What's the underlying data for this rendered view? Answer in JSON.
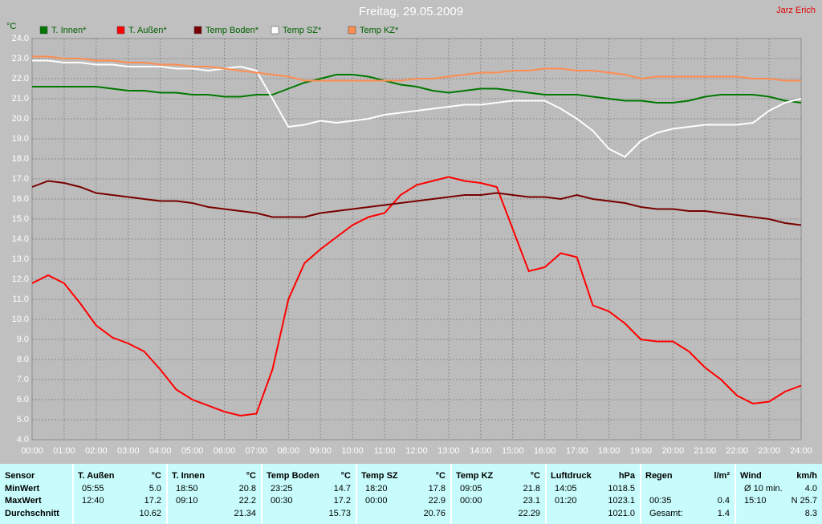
{
  "chart_data": {
    "type": "line",
    "title": "Freitag, 29.05.2009",
    "author": "Jarz Erich",
    "y_unit": "°C",
    "grid": true,
    "x": [
      0,
      0.5,
      1,
      1.5,
      2,
      2.5,
      3,
      3.5,
      4,
      4.5,
      5,
      5.5,
      6,
      6.5,
      7,
      7.5,
      8,
      8.5,
      9,
      9.5,
      10,
      10.5,
      11,
      11.5,
      12,
      12.5,
      13,
      13.5,
      14,
      14.5,
      15,
      15.5,
      16,
      16.5,
      17,
      17.5,
      18,
      18.5,
      19,
      19.5,
      20,
      20.5,
      21,
      21.5,
      22,
      22.5,
      23,
      23.5,
      24
    ],
    "xlim": [
      0,
      24
    ],
    "xticks": [
      {
        "value": 0,
        "label": "00:00"
      },
      {
        "value": 1,
        "label": "01:00"
      },
      {
        "value": 2,
        "label": "02:00"
      },
      {
        "value": 3,
        "label": "03:00"
      },
      {
        "value": 4,
        "label": "04:00"
      },
      {
        "value": 5,
        "label": "05:00"
      },
      {
        "value": 6,
        "label": "06:00"
      },
      {
        "value": 7,
        "label": "07:00"
      },
      {
        "value": 8,
        "label": "08:00"
      },
      {
        "value": 9,
        "label": "09:00"
      },
      {
        "value": 10,
        "label": "10:00"
      },
      {
        "value": 11,
        "label": "11:00"
      },
      {
        "value": 12,
        "label": "12:00"
      },
      {
        "value": 13,
        "label": "13:00"
      },
      {
        "value": 14,
        "label": "14:00"
      },
      {
        "value": 15,
        "label": "15:00"
      },
      {
        "value": 16,
        "label": "16:00"
      },
      {
        "value": 17,
        "label": "17:00"
      },
      {
        "value": 18,
        "label": "18:00"
      },
      {
        "value": 19,
        "label": "19:00"
      },
      {
        "value": 20,
        "label": "20:00"
      },
      {
        "value": 21,
        "label": "21:00"
      },
      {
        "value": 22,
        "label": "22:00"
      },
      {
        "value": 23,
        "label": "23:00"
      },
      {
        "value": 24,
        "label": "24:00"
      }
    ],
    "ylim": [
      4,
      24
    ],
    "yticks": [
      {
        "value": 4,
        "label": "4.0"
      },
      {
        "value": 5,
        "label": "5.0"
      },
      {
        "value": 6,
        "label": "6.0"
      },
      {
        "value": 7,
        "label": "7.0"
      },
      {
        "value": 8,
        "label": "8.0"
      },
      {
        "value": 9,
        "label": "9.0"
      },
      {
        "value": 10,
        "label": "10.0"
      },
      {
        "value": 11,
        "label": "11.0"
      },
      {
        "value": 12,
        "label": "12.0"
      },
      {
        "value": 13,
        "label": "13.0"
      },
      {
        "value": 14,
        "label": "14.0"
      },
      {
        "value": 15,
        "label": "15.0"
      },
      {
        "value": 16,
        "label": "16.0"
      },
      {
        "value": 17,
        "label": "17.0"
      },
      {
        "value": 18,
        "label": "18.0"
      },
      {
        "value": 19,
        "label": "19.0"
      },
      {
        "value": 20,
        "label": "20.0"
      },
      {
        "value": 21,
        "label": "21.0"
      },
      {
        "value": 22,
        "label": "22.0"
      },
      {
        "value": 23,
        "label": "23.0"
      },
      {
        "value": 24,
        "label": "24.0"
      }
    ],
    "series": [
      {
        "name": "T. Innen*",
        "color": "#007800",
        "values": [
          21.6,
          21.6,
          21.6,
          21.6,
          21.6,
          21.5,
          21.4,
          21.4,
          21.3,
          21.3,
          21.2,
          21.2,
          21.1,
          21.1,
          21.2,
          21.2,
          21.5,
          21.8,
          22.0,
          22.2,
          22.2,
          22.1,
          21.9,
          21.7,
          21.6,
          21.4,
          21.3,
          21.4,
          21.5,
          21.5,
          21.4,
          21.3,
          21.2,
          21.2,
          21.2,
          21.1,
          21.0,
          20.9,
          20.9,
          20.8,
          20.8,
          20.9,
          21.1,
          21.2,
          21.2,
          21.2,
          21.1,
          20.9,
          20.8
        ]
      },
      {
        "name": "T. Außen*",
        "color": "#ff0000",
        "values": [
          11.8,
          12.2,
          11.8,
          10.8,
          9.7,
          9.1,
          8.8,
          8.4,
          7.5,
          6.5,
          6.0,
          5.7,
          5.4,
          5.2,
          5.3,
          7.5,
          11.0,
          12.8,
          13.5,
          14.1,
          14.7,
          15.1,
          15.3,
          16.2,
          16.7,
          16.9,
          17.1,
          16.9,
          16.8,
          16.6,
          14.5,
          12.4,
          12.6,
          13.3,
          13.1,
          10.7,
          10.4,
          9.8,
          9.0,
          8.9,
          8.9,
          8.4,
          7.6,
          7.0,
          6.2,
          5.8,
          5.9,
          6.4,
          6.7
        ]
      },
      {
        "name": "Temp Boden*",
        "color": "#780000",
        "values": [
          16.6,
          16.9,
          16.8,
          16.6,
          16.3,
          16.2,
          16.1,
          16.0,
          15.9,
          15.9,
          15.8,
          15.6,
          15.5,
          15.4,
          15.3,
          15.1,
          15.1,
          15.1,
          15.3,
          15.4,
          15.5,
          15.6,
          15.7,
          15.8,
          15.9,
          16.0,
          16.1,
          16.2,
          16.2,
          16.3,
          16.2,
          16.1,
          16.1,
          16.0,
          16.2,
          16.0,
          15.9,
          15.8,
          15.6,
          15.5,
          15.5,
          15.4,
          15.4,
          15.3,
          15.2,
          15.1,
          15.0,
          14.8,
          14.7
        ]
      },
      {
        "name": "Temp SZ*",
        "color": "#ffffff",
        "values": [
          22.9,
          22.9,
          22.8,
          22.8,
          22.7,
          22.7,
          22.6,
          22.6,
          22.6,
          22.5,
          22.5,
          22.4,
          22.5,
          22.6,
          22.4,
          21.0,
          19.6,
          19.7,
          19.9,
          19.8,
          19.9,
          20.0,
          20.2,
          20.3,
          20.4,
          20.5,
          20.6,
          20.7,
          20.7,
          20.8,
          20.9,
          20.9,
          20.9,
          20.5,
          20.0,
          19.4,
          18.5,
          18.1,
          18.9,
          19.3,
          19.5,
          19.6,
          19.7,
          19.7,
          19.7,
          19.8,
          20.4,
          20.8,
          21.0
        ]
      },
      {
        "name": "Temp KZ*",
        "color": "#ff8c50",
        "values": [
          23.1,
          23.1,
          23.0,
          23.0,
          22.9,
          22.9,
          22.8,
          22.8,
          22.7,
          22.7,
          22.6,
          22.6,
          22.5,
          22.4,
          22.3,
          22.2,
          22.1,
          21.9,
          21.9,
          21.9,
          21.9,
          21.9,
          21.9,
          21.9,
          22.0,
          22.0,
          22.1,
          22.2,
          22.3,
          22.3,
          22.4,
          22.4,
          22.5,
          22.5,
          22.4,
          22.4,
          22.3,
          22.2,
          22.0,
          22.1,
          22.1,
          22.1,
          22.1,
          22.1,
          22.1,
          22.0,
          22.0,
          21.9,
          21.9
        ]
      }
    ]
  },
  "table": {
    "sensor_header": "Sensor",
    "row_labels": [
      "MinWert",
      "MaxWert",
      "Durchschnitt"
    ],
    "columns": [
      {
        "header": "T. Außen",
        "unit": "°C",
        "rows": [
          [
            "05:55",
            "5.0"
          ],
          [
            "12:40",
            "17.2"
          ],
          [
            "10.62"
          ]
        ]
      },
      {
        "header": "T. Innen",
        "unit": "°C",
        "rows": [
          [
            "18:50",
            "20.8"
          ],
          [
            "09:10",
            "22.2"
          ],
          [
            "21.34"
          ]
        ]
      },
      {
        "header": "Temp Boden",
        "unit": "°C",
        "rows": [
          [
            "23:25",
            "14.7"
          ],
          [
            "00:30",
            "17.2"
          ],
          [
            "15.73"
          ]
        ]
      },
      {
        "header": "Temp SZ",
        "unit": "°C",
        "rows": [
          [
            "18:20",
            "17.8"
          ],
          [
            "00:00",
            "22.9"
          ],
          [
            "20.76"
          ]
        ]
      },
      {
        "header": "Temp KZ",
        "unit": "°C",
        "rows": [
          [
            "09:05",
            "21.8"
          ],
          [
            "00:00",
            "23.1"
          ],
          [
            "22.29"
          ]
        ]
      },
      {
        "header": "Luftdruck",
        "unit": "hPa",
        "rows": [
          [
            "14:05",
            "1018.5"
          ],
          [
            "01:20",
            "1023.1"
          ],
          [
            "1021.0"
          ]
        ]
      },
      {
        "header": "Regen",
        "unit": "l/m²",
        "rows": [
          [],
          [
            "00:35",
            "0.4"
          ],
          [
            "Gesamt:",
            "1.4"
          ]
        ]
      },
      {
        "header": "Wind",
        "unit": "km/h",
        "rows": [
          [
            "Ø 10 min.",
            "4.0"
          ],
          [
            "15:10",
            "N 25.7"
          ],
          [
            "8.3"
          ]
        ]
      }
    ]
  }
}
